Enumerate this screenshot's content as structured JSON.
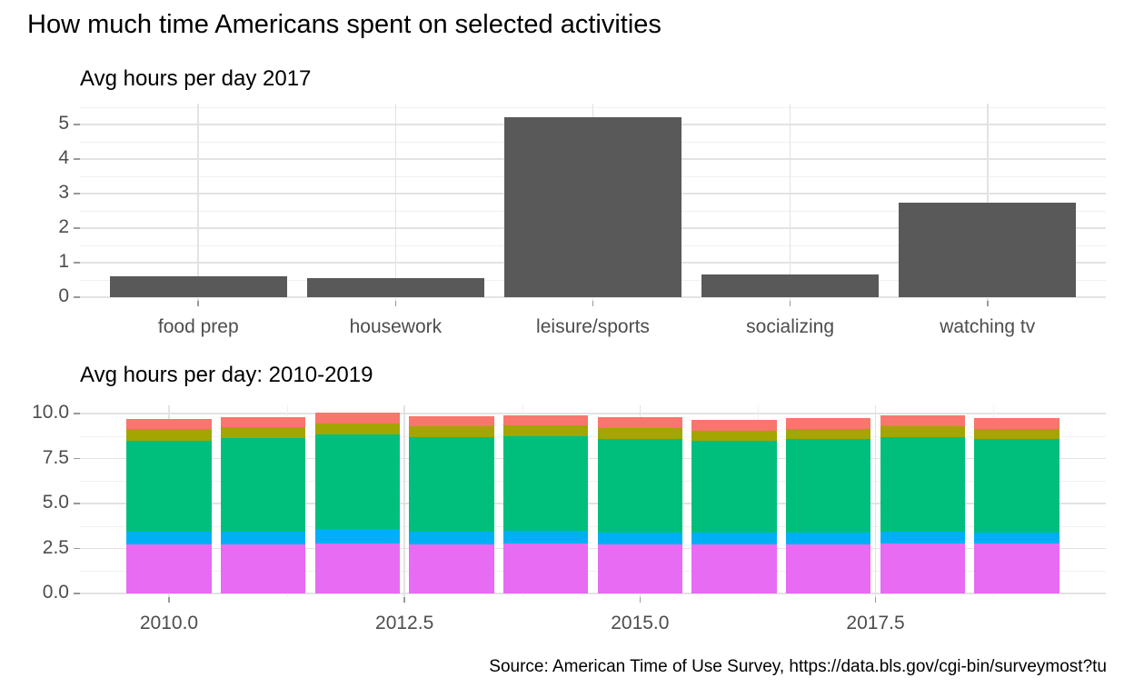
{
  "figure": {
    "title": "How much time Americans spent on selected activities",
    "caption": "Source: American Time of Use Survey, https://data.bls.gov/cgi-bin/surveymost?tu",
    "background_color": "#ffffff",
    "axis_text_color": "#4d4d4d",
    "gridline_color": "#e3e3e3"
  },
  "chart_data": [
    {
      "type": "bar",
      "title": "Avg hours per day 2017",
      "categories": [
        "food prep",
        "housework",
        "leisure/sports",
        "socializing",
        "watching tv"
      ],
      "values": [
        0.6,
        0.55,
        5.2,
        0.65,
        2.75
      ],
      "bar_color": "#595959",
      "xlabel": "",
      "ylabel": "",
      "ylim": [
        0,
        5.6
      ],
      "yticks": [
        "0",
        "1",
        "2",
        "3",
        "4",
        "5"
      ],
      "ytick_values": [
        0,
        1,
        2,
        3,
        4,
        5
      ],
      "yminor_values": [
        0.5,
        1.5,
        2.5,
        3.5,
        4.5,
        5.5
      ],
      "grid": "on",
      "legend": "none"
    },
    {
      "type": "bar",
      "subtype": "stacked",
      "title": "Avg hours per day: 2010-2019",
      "x": [
        2010,
        2011,
        2012,
        2013,
        2014,
        2015,
        2016,
        2017,
        2018,
        2019
      ],
      "series": [
        {
          "name": "watching tv",
          "color": "#E76BF3",
          "values": [
            2.75,
            2.75,
            2.8,
            2.75,
            2.8,
            2.75,
            2.75,
            2.75,
            2.8,
            2.8
          ]
        },
        {
          "name": "socializing",
          "color": "#00B0F6",
          "values": [
            0.7,
            0.7,
            0.8,
            0.7,
            0.7,
            0.65,
            0.65,
            0.65,
            0.65,
            0.6
          ]
        },
        {
          "name": "leisure/sports",
          "color": "#00BF7D",
          "values": [
            5.05,
            5.2,
            5.25,
            5.25,
            5.25,
            5.2,
            5.1,
            5.2,
            5.25,
            5.2
          ]
        },
        {
          "name": "housework",
          "color": "#A3A500",
          "values": [
            0.65,
            0.6,
            0.6,
            0.6,
            0.6,
            0.6,
            0.55,
            0.55,
            0.6,
            0.55
          ]
        },
        {
          "name": "food prep",
          "color": "#F8766D",
          "values": [
            0.55,
            0.55,
            0.6,
            0.55,
            0.55,
            0.6,
            0.6,
            0.6,
            0.6,
            0.6
          ]
        }
      ],
      "stack_order": "bottom-to-top",
      "xlabel": "",
      "ylabel": "",
      "xlim": [
        2009.055,
        2019.945
      ],
      "ylim": [
        0,
        10.45
      ],
      "xticks": [
        "2010.0",
        "2012.5",
        "2015.0",
        "2017.5"
      ],
      "xtick_values": [
        2010,
        2012.5,
        2015,
        2017.5
      ],
      "xminor_values": [
        2011.25,
        2013.75,
        2016.25,
        2018.75
      ],
      "yticks": [
        "0.0",
        "2.5",
        "5.0",
        "7.5",
        "10.0"
      ],
      "ytick_values": [
        0,
        2.5,
        5,
        7.5,
        10
      ],
      "yminor_values": [
        1.25,
        3.75,
        6.25,
        8.75
      ],
      "grid": "on",
      "legend": "none"
    }
  ]
}
